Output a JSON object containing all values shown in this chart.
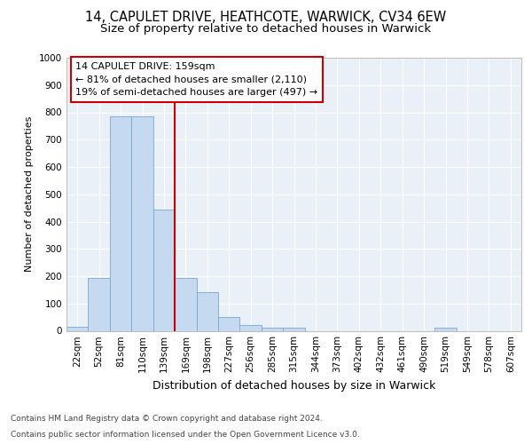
{
  "title1": "14, CAPULET DRIVE, HEATHCOTE, WARWICK, CV34 6EW",
  "title2": "Size of property relative to detached houses in Warwick",
  "xlabel": "Distribution of detached houses by size in Warwick",
  "ylabel": "Number of detached properties",
  "categories": [
    "22sqm",
    "52sqm",
    "81sqm",
    "110sqm",
    "139sqm",
    "169sqm",
    "198sqm",
    "227sqm",
    "256sqm",
    "285sqm",
    "315sqm",
    "344sqm",
    "373sqm",
    "402sqm",
    "432sqm",
    "461sqm",
    "490sqm",
    "519sqm",
    "549sqm",
    "578sqm",
    "607sqm"
  ],
  "values": [
    15,
    195,
    785,
    785,
    445,
    195,
    140,
    50,
    20,
    10,
    10,
    0,
    0,
    0,
    0,
    0,
    0,
    10,
    0,
    0,
    0
  ],
  "bar_color": "#c5d9f0",
  "bar_edge_color": "#7ba7d0",
  "reference_line_x": 4.5,
  "reference_line_color": "#cc0000",
  "annotation_line1": "14 CAPULET DRIVE: 159sqm",
  "annotation_line2": "← 81% of detached houses are smaller (2,110)",
  "annotation_line3": "19% of semi-detached houses are larger (497) →",
  "annotation_box_color": "#cc0000",
  "ylim": [
    0,
    1000
  ],
  "yticks": [
    0,
    100,
    200,
    300,
    400,
    500,
    600,
    700,
    800,
    900,
    1000
  ],
  "footnote1": "Contains HM Land Registry data © Crown copyright and database right 2024.",
  "footnote2": "Contains public sector information licensed under the Open Government Licence v3.0.",
  "bg_color": "#eaf0f8",
  "grid_color": "#ffffff",
  "fig_bg": "#ffffff",
  "title1_fontsize": 10.5,
  "title2_fontsize": 9.5,
  "ylabel_fontsize": 8,
  "xlabel_fontsize": 9,
  "tick_fontsize": 7.5,
  "annot_fontsize": 8,
  "footnote_fontsize": 6.5
}
